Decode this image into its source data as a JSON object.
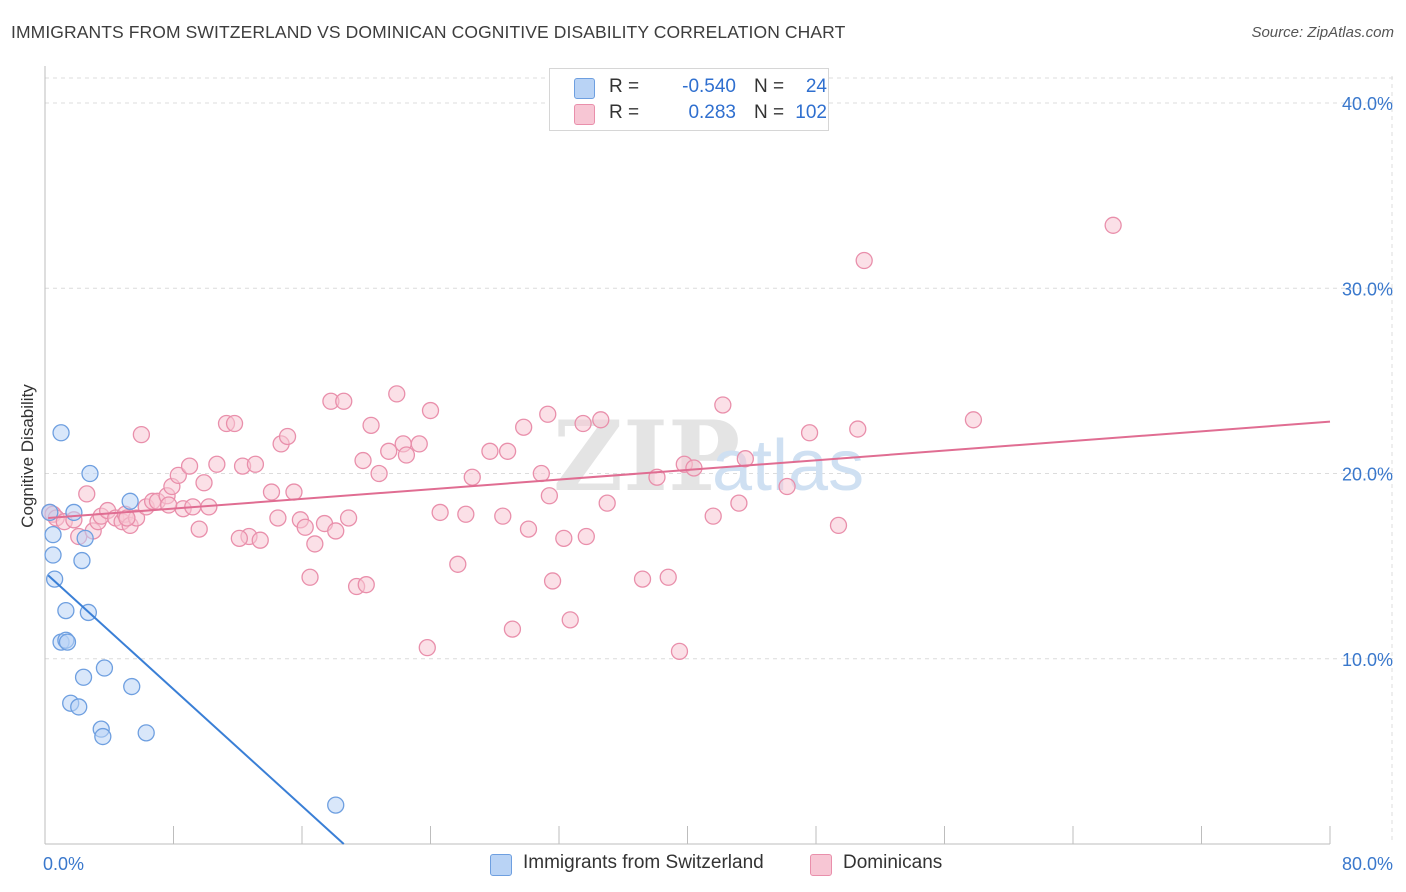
{
  "title": "IMMIGRANTS FROM SWITZERLAND VS DOMINICAN COGNITIVE DISABILITY CORRELATION CHART",
  "source": "Source: ZipAtlas.com",
  "watermark": "ZIPatlas",
  "legend_top": [
    {
      "r_label": "R =",
      "r_value": "-0.540",
      "n_label": "N =",
      "n_value": "24"
    },
    {
      "r_label": "R =",
      "r_value": "0.283",
      "n_label": "N =",
      "n_value": "102"
    }
  ],
  "legend_bottom": [
    "Immigrants from Switzerland",
    "Dominicans"
  ],
  "colors": {
    "blue_fill": "#b9d3f5",
    "blue_stroke": "#6e9fe0",
    "blue_line": "#3a7fd6",
    "pink_fill": "#f7c6d4",
    "pink_stroke": "#e98fab",
    "pink_line": "#e06d92",
    "tick_text": "#3a78cc",
    "grid": "#dcdcdc"
  },
  "chart_data": {
    "type": "scatter",
    "xlabel": "",
    "ylabel": "Cognitive Disability",
    "xlim": [
      0,
      80
    ],
    "ylim": [
      0,
      42
    ],
    "x_tick_labels": [
      {
        "value": 0,
        "label": "0.0%"
      },
      {
        "value": 80,
        "label": "80.0%"
      }
    ],
    "y_tick_labels": [
      {
        "value": 10,
        "label": "10.0%"
      },
      {
        "value": 20,
        "label": "20.0%"
      },
      {
        "value": 30,
        "label": "30.0%"
      },
      {
        "value": 40,
        "label": "40.0%"
      }
    ],
    "grid": true,
    "series": [
      {
        "name": "Immigrants from Switzerland",
        "color": "#6e9fe0",
        "points": [
          [
            0.3,
            17.9
          ],
          [
            0.5,
            16.7
          ],
          [
            0.5,
            15.6
          ],
          [
            0.6,
            14.3
          ],
          [
            1.0,
            22.2
          ],
          [
            1.3,
            12.6
          ],
          [
            1.0,
            10.9
          ],
          [
            1.3,
            11.0
          ],
          [
            1.4,
            10.9
          ],
          [
            1.8,
            17.9
          ],
          [
            2.3,
            15.3
          ],
          [
            2.5,
            16.5
          ],
          [
            2.7,
            12.5
          ],
          [
            2.8,
            20.0
          ],
          [
            2.4,
            9.0
          ],
          [
            1.6,
            7.6
          ],
          [
            2.1,
            7.4
          ],
          [
            3.7,
            9.5
          ],
          [
            3.5,
            6.2
          ],
          [
            3.6,
            5.8
          ],
          [
            5.3,
            18.5
          ],
          [
            5.4,
            8.5
          ],
          [
            6.3,
            6.0
          ],
          [
            18.1,
            2.1
          ]
        ],
        "trend": {
          "x": [
            0.2,
            18.6
          ],
          "y": [
            14.5,
            0.0
          ]
        }
      },
      {
        "name": "Dominicans",
        "color": "#e98fab",
        "points": [
          [
            0.3,
            17.9
          ],
          [
            0.5,
            17.8
          ],
          [
            0.7,
            17.6
          ],
          [
            1.2,
            17.4
          ],
          [
            1.8,
            17.5
          ],
          [
            2.1,
            16.6
          ],
          [
            2.6,
            18.9
          ],
          [
            3.0,
            16.9
          ],
          [
            3.3,
            17.4
          ],
          [
            3.5,
            17.7
          ],
          [
            3.9,
            18.0
          ],
          [
            4.4,
            17.6
          ],
          [
            4.8,
            17.4
          ],
          [
            5.0,
            17.8
          ],
          [
            5.3,
            17.2
          ],
          [
            5.7,
            17.6
          ],
          [
            6.0,
            22.1
          ],
          [
            6.3,
            18.2
          ],
          [
            6.7,
            18.5
          ],
          [
            7.0,
            18.5
          ],
          [
            7.6,
            18.8
          ],
          [
            7.9,
            19.3
          ],
          [
            8.3,
            19.9
          ],
          [
            8.6,
            18.1
          ],
          [
            9.0,
            20.4
          ],
          [
            9.6,
            17.0
          ],
          [
            9.9,
            19.5
          ],
          [
            10.2,
            18.2
          ],
          [
            10.7,
            20.5
          ],
          [
            11.3,
            22.7
          ],
          [
            11.8,
            22.7
          ],
          [
            12.3,
            20.4
          ],
          [
            12.7,
            16.6
          ],
          [
            13.1,
            20.5
          ],
          [
            13.4,
            16.4
          ],
          [
            14.1,
            19.0
          ],
          [
            14.7,
            21.6
          ],
          [
            15.1,
            22.0
          ],
          [
            15.5,
            19.0
          ],
          [
            15.9,
            17.5
          ],
          [
            16.2,
            17.1
          ],
          [
            16.5,
            14.4
          ],
          [
            16.8,
            16.2
          ],
          [
            17.4,
            17.3
          ],
          [
            17.8,
            23.9
          ],
          [
            18.1,
            16.9
          ],
          [
            18.6,
            23.9
          ],
          [
            18.9,
            17.6
          ],
          [
            19.4,
            13.9
          ],
          [
            19.8,
            20.7
          ],
          [
            20.0,
            14.0
          ],
          [
            20.3,
            22.6
          ],
          [
            20.8,
            20.0
          ],
          [
            21.4,
            21.2
          ],
          [
            21.9,
            24.3
          ],
          [
            22.3,
            21.6
          ],
          [
            22.5,
            21.0
          ],
          [
            23.3,
            21.6
          ],
          [
            23.8,
            10.6
          ],
          [
            24.0,
            23.4
          ],
          [
            24.6,
            17.9
          ],
          [
            25.7,
            15.1
          ],
          [
            26.2,
            17.8
          ],
          [
            26.6,
            19.8
          ],
          [
            27.7,
            21.2
          ],
          [
            28.5,
            17.7
          ],
          [
            28.8,
            21.2
          ],
          [
            29.1,
            11.6
          ],
          [
            29.8,
            22.5
          ],
          [
            30.1,
            17.0
          ],
          [
            30.9,
            20.0
          ],
          [
            31.3,
            23.2
          ],
          [
            31.4,
            18.8
          ],
          [
            31.6,
            14.2
          ],
          [
            32.3,
            16.5
          ],
          [
            32.7,
            12.1
          ],
          [
            33.5,
            22.7
          ],
          [
            33.7,
            16.6
          ],
          [
            34.6,
            22.9
          ],
          [
            35.0,
            18.4
          ],
          [
            37.2,
            14.3
          ],
          [
            38.1,
            19.8
          ],
          [
            38.8,
            14.4
          ],
          [
            39.5,
            10.4
          ],
          [
            39.8,
            20.5
          ],
          [
            40.4,
            20.3
          ],
          [
            41.6,
            17.7
          ],
          [
            42.2,
            23.7
          ],
          [
            43.2,
            18.4
          ],
          [
            43.6,
            20.8
          ],
          [
            46.2,
            19.3
          ],
          [
            47.6,
            22.2
          ],
          [
            49.4,
            17.2
          ],
          [
            50.6,
            22.4
          ],
          [
            51.0,
            31.5
          ],
          [
            57.8,
            22.9
          ],
          [
            66.5,
            33.4
          ],
          [
            5.1,
            17.6
          ],
          [
            7.7,
            18.3
          ],
          [
            12.1,
            16.5
          ],
          [
            14.5,
            17.6
          ],
          [
            9.2,
            18.2
          ]
        ],
        "trend": {
          "x": [
            0.2,
            80.0
          ],
          "y": [
            17.6,
            22.8
          ]
        }
      }
    ]
  }
}
